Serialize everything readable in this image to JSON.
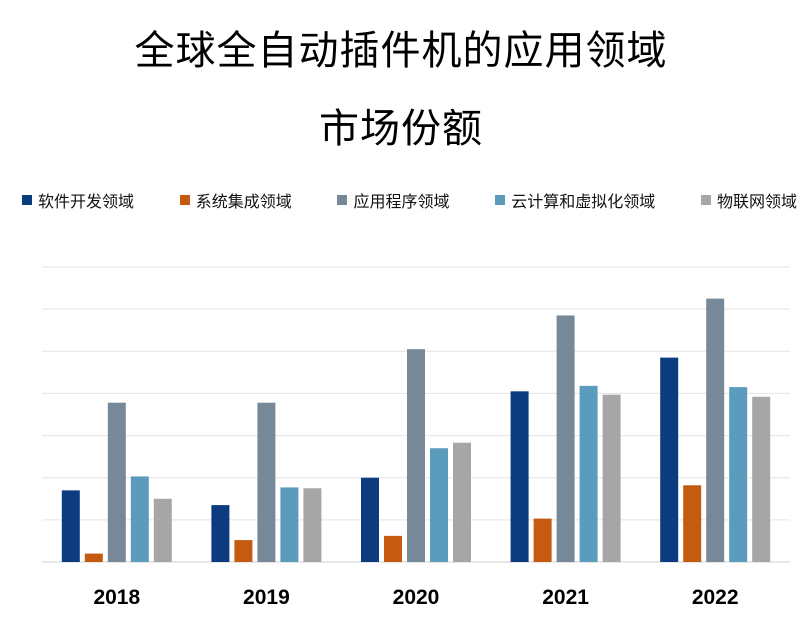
{
  "chart_data": {
    "type": "bar",
    "title_line1": "全球全自动插件机的应用领域",
    "title_line2": "市场份额",
    "categories": [
      "2018",
      "2019",
      "2020",
      "2021",
      "2022"
    ],
    "series": [
      {
        "name": "软件开发领域",
        "color": "#0d3b7f",
        "values": [
          1.7,
          1.35,
          2.0,
          4.05,
          4.85
        ]
      },
      {
        "name": "系统集成领域",
        "color": "#c55a11",
        "values": [
          0.2,
          0.52,
          0.62,
          1.03,
          1.82
        ]
      },
      {
        "name": "应用程序领域",
        "color": "#778899",
        "values": [
          3.78,
          3.78,
          5.05,
          5.85,
          6.25
        ]
      },
      {
        "name": "云计算和虚拟化领域",
        "color": "#5b9cbc",
        "values": [
          2.03,
          1.77,
          2.7,
          4.18,
          4.15
        ]
      },
      {
        "name": "物联网领域",
        "color": "#a6a6a6",
        "values": [
          1.5,
          1.75,
          2.83,
          3.97,
          3.92
        ]
      }
    ],
    "ylim": [
      0,
      7
    ],
    "gridlines": 7,
    "xlabel": "",
    "ylabel": "",
    "legend_position": "top"
  }
}
